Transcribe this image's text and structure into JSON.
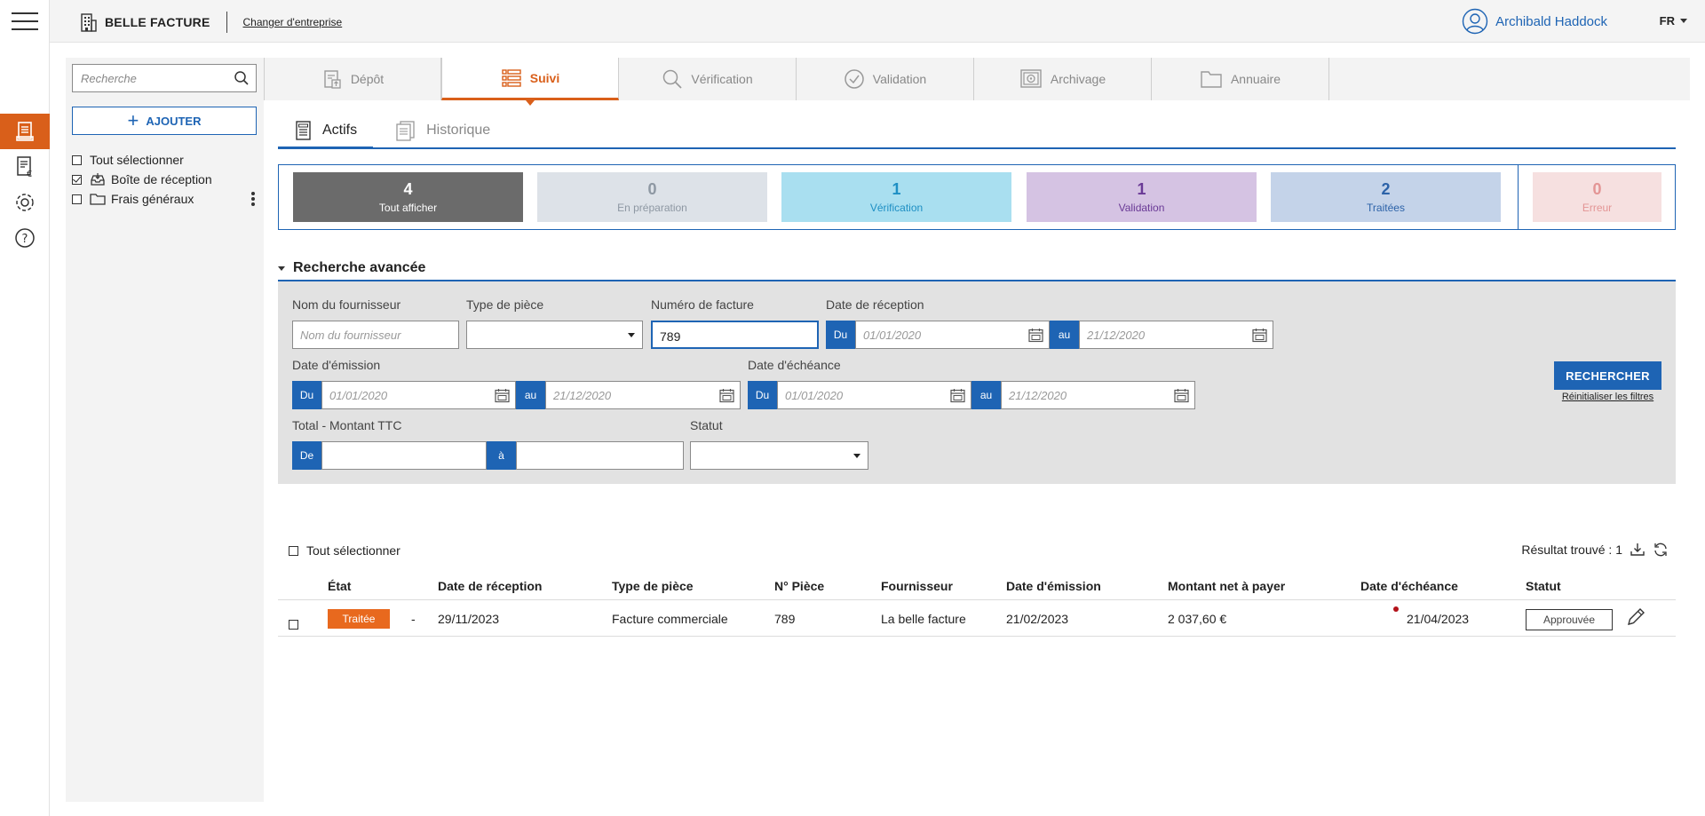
{
  "app": {
    "brand": "BELLE FACTURE",
    "change_company": "Changer d'entreprise",
    "user_name": "Archibald Haddock",
    "language": "FR"
  },
  "sidebar": {
    "search_placeholder": "Recherche",
    "add_label": "AJOUTER",
    "select_all": "Tout sélectionner",
    "folders": [
      {
        "label": "Boîte de réception",
        "checked": true,
        "icon": "inbox-icon"
      },
      {
        "label": "Frais généraux",
        "checked": false,
        "icon": "folder-icon"
      }
    ]
  },
  "main_tabs": [
    {
      "label": "Dépôt",
      "icon": "upload-document-icon"
    },
    {
      "label": "Suivi",
      "icon": "list-icon",
      "active": true
    },
    {
      "label": "Vérification",
      "icon": "magnifier-icon"
    },
    {
      "label": "Validation",
      "icon": "check-circle-icon"
    },
    {
      "label": "Archivage",
      "icon": "safe-icon"
    },
    {
      "label": "Annuaire",
      "icon": "folder-icon"
    }
  ],
  "sub_tabs": [
    {
      "label": "Actifs",
      "active": true
    },
    {
      "label": "Historique"
    }
  ],
  "status_cards": [
    {
      "count": "4",
      "label": "Tout afficher",
      "bg": "#6b6b6b",
      "fg": "#ffffff"
    },
    {
      "count": "0",
      "label": "En préparation",
      "bg": "#dde2e8",
      "fg": "#8e98a3"
    },
    {
      "count": "1",
      "label": "Vérification",
      "bg": "#a9dff0",
      "fg": "#1e8fc4"
    },
    {
      "count": "1",
      "label": "Validation",
      "bg": "#d5c3e3",
      "fg": "#6a3a96"
    },
    {
      "count": "2",
      "label": "Traitées",
      "bg": "#c4d3e9",
      "fg": "#2c62a8"
    },
    {
      "count": "0",
      "label": "Erreur",
      "bg": "#f6e0e0",
      "fg": "#e39595"
    }
  ],
  "advanced_search": {
    "title": "Recherche avancée",
    "supplier_label": "Nom du fournisseur",
    "supplier_placeholder": "Nom du fournisseur",
    "doc_type_label": "Type de pièce",
    "invoice_number_label": "Numéro de facture",
    "invoice_number_value": "789",
    "reception_label": "Date de réception",
    "emission_label": "Date d'émission",
    "due_label": "Date d'échéance",
    "total_label": "Total - Montant TTC",
    "status_label": "Statut",
    "from_tag": "Du",
    "to_tag": "au",
    "amount_from_tag": "De",
    "amount_to_tag": "à",
    "date_from_placeholder": "01/01/2020",
    "date_to_placeholder": "21/12/2020",
    "search_button": "RECHERCHER",
    "reset_link": "Réinitialiser les filtres"
  },
  "results": {
    "select_all": "Tout sélectionner",
    "count_text": "Résultat trouvé : 1",
    "columns": [
      "État",
      "Date de réception",
      "Type de pièce",
      "N° Pièce",
      "Fournisseur",
      "Date d'émission",
      "Montant net à payer",
      "Date d'échéance",
      "Statut"
    ],
    "rows": [
      {
        "state": "Traitée",
        "dash": "-",
        "reception_date": "29/11/2023",
        "doc_type": "Facture commerciale",
        "piece_number": "789",
        "supplier": "La belle facture",
        "emission_date": "21/02/2023",
        "net_amount": "2 037,60 €",
        "due_date": "21/04/2023",
        "status": "Approuvée"
      }
    ]
  },
  "colors": {
    "accent_orange": "#d95f1a",
    "primary_blue": "#1e64b4",
    "overdue_dot": "#b3121a"
  }
}
